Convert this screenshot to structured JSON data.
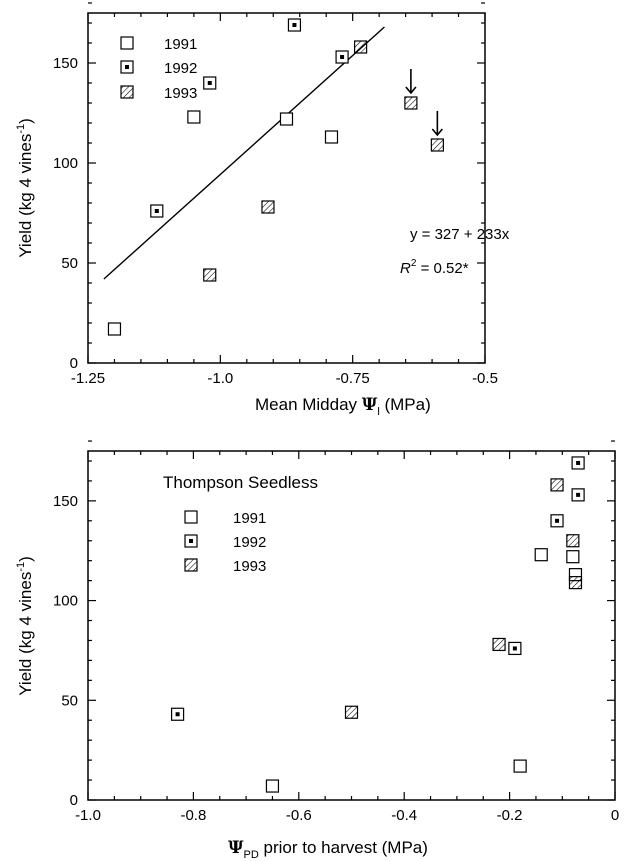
{
  "colors": {
    "ink": "#000000",
    "background": "#ffffff"
  },
  "legend_labels": [
    "1991",
    "1992",
    "1993"
  ],
  "chart_data": [
    {
      "type": "scatter",
      "title": "",
      "ylabel": "Yield (kg 4 vines",
      "ylabel_sup": "-1",
      "ylabel_tail": ")",
      "xlabel_prefix": "Mean Midday ",
      "xlabel_symbol": "Ψ",
      "xlabel_sub": "l",
      "xlabel_suffix": " (MPa)",
      "xlim": [
        -1.25,
        -0.5
      ],
      "ylim": [
        0,
        175
      ],
      "xticks": [
        -1.25,
        -1.0,
        -0.75,
        -0.5
      ],
      "xtick_labels": [
        "-1.25",
        "-1.0",
        "-0.75",
        "-0.5"
      ],
      "yticks": [
        0,
        50,
        100,
        150
      ],
      "ytick_labels": [
        "0",
        "50",
        "100",
        "150"
      ],
      "legend_position": "top-left",
      "series": [
        {
          "name": "1991",
          "marker": "open-square",
          "x": [
            -1.2,
            -1.05,
            -0.875,
            -0.79
          ],
          "y": [
            17,
            123,
            122,
            113
          ]
        },
        {
          "name": "1992",
          "marker": "dot-square",
          "x": [
            -1.12,
            -1.02,
            -0.86,
            -0.77
          ],
          "y": [
            76,
            140,
            169,
            153
          ]
        },
        {
          "name": "1993",
          "marker": "hatched-square",
          "x": [
            -1.02,
            -0.91,
            -0.735,
            -0.64,
            -0.59
          ],
          "y": [
            44,
            78,
            158,
            130,
            109
          ]
        }
      ],
      "regression_line": {
        "x": [
          -1.22,
          -0.69
        ],
        "y": [
          42,
          168
        ]
      },
      "arrows": [
        {
          "x": -0.64,
          "y": 130
        },
        {
          "x": -0.59,
          "y": 109
        }
      ],
      "annotations": {
        "equation": "y = 327 + 233x",
        "r2_letter": "R",
        "r2_sup": "2",
        "r2_value": " = 0.52*"
      }
    },
    {
      "type": "scatter",
      "title": "Thompson Seedless",
      "ylabel": "Yield (kg 4 vines",
      "ylabel_sup": "-1",
      "ylabel_tail": ")",
      "xlabel_symbol": "Ψ",
      "xlabel_sub": "PD",
      "xlabel_suffix": " prior to harvest (MPa)",
      "xlim": [
        -1.0,
        0
      ],
      "ylim": [
        0,
        175
      ],
      "xticks": [
        -1.0,
        -0.8,
        -0.6,
        -0.4,
        -0.2,
        0
      ],
      "xtick_labels": [
        "-1.0",
        "-0.8",
        "-0.6",
        "-0.4",
        "-0.2",
        "0"
      ],
      "yticks": [
        0,
        50,
        100,
        150
      ],
      "ytick_labels": [
        "0",
        "50",
        "100",
        "150"
      ],
      "legend_position": "top-left",
      "series": [
        {
          "name": "1991",
          "marker": "open-square",
          "x": [
            -0.65,
            -0.18,
            -0.14,
            -0.08,
            -0.075
          ],
          "y": [
            7,
            17,
            123,
            122,
            113
          ]
        },
        {
          "name": "1992",
          "marker": "dot-square",
          "x": [
            -0.83,
            -0.19,
            -0.11,
            -0.07,
            -0.07
          ],
          "y": [
            43,
            76,
            140,
            169,
            153
          ]
        },
        {
          "name": "1993",
          "marker": "hatched-square",
          "x": [
            -0.5,
            -0.22,
            -0.11,
            -0.08,
            -0.075
          ],
          "y": [
            44,
            78,
            158,
            130,
            109
          ]
        }
      ]
    }
  ]
}
